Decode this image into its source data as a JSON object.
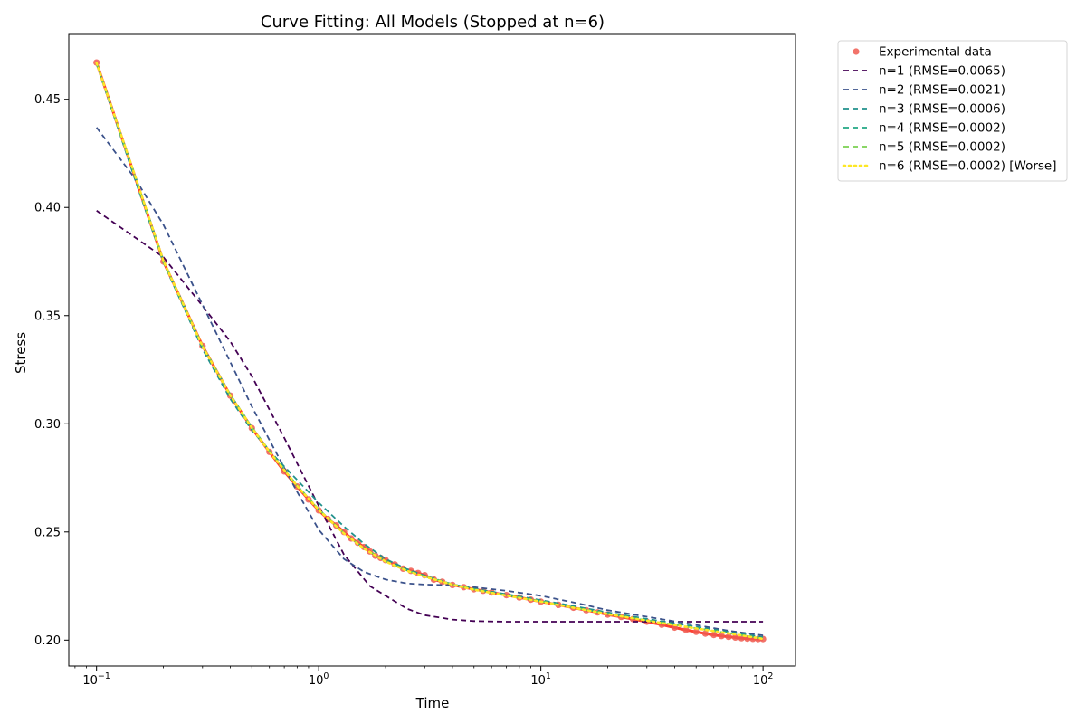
{
  "chart_data": {
    "type": "line",
    "title": "Curve Fitting: All Models (Stopped at n=6)",
    "xlabel": "Time",
    "ylabel": "Stress",
    "xscale": "log",
    "xlim": [
      0.075,
      140
    ],
    "ylim": [
      0.188,
      0.48
    ],
    "x_ticks": [
      {
        "value": 0.1,
        "base": "10",
        "exp": "−1"
      },
      {
        "value": 1,
        "base": "10",
        "exp": "0"
      },
      {
        "value": 10,
        "base": "10",
        "exp": "1"
      },
      {
        "value": 100,
        "base": "10",
        "exp": "2"
      }
    ],
    "y_ticks": [
      {
        "value": 0.2,
        "label": "0.20"
      },
      {
        "value": 0.25,
        "label": "0.25"
      },
      {
        "value": 0.3,
        "label": "0.30"
      },
      {
        "value": 0.35,
        "label": "0.35"
      },
      {
        "value": 0.4,
        "label": "0.40"
      },
      {
        "value": 0.45,
        "label": "0.45"
      }
    ],
    "grid": false,
    "legend_position": "outside-top-right",
    "experimental": {
      "name": "Experimental data",
      "color": "#f05a50",
      "x": [
        0.1,
        0.2,
        0.3,
        0.4,
        0.5,
        0.6,
        0.7,
        0.8,
        0.9,
        1.0,
        1.1,
        1.2,
        1.3,
        1.4,
        1.5,
        1.6,
        1.7,
        1.8,
        1.9,
        2.0,
        2.2,
        2.4,
        2.6,
        2.8,
        3.0,
        3.3,
        3.6,
        4.0,
        4.5,
        5.0,
        5.5,
        6.0,
        7.0,
        8.0,
        9.0,
        10,
        12,
        14,
        16,
        18,
        20,
        23,
        26,
        30,
        35,
        40,
        45,
        50,
        55,
        60,
        65,
        70,
        75,
        80,
        85,
        90,
        95,
        100
      ],
      "y": [
        0.467,
        0.375,
        0.336,
        0.313,
        0.298,
        0.287,
        0.278,
        0.271,
        0.265,
        0.26,
        0.256,
        0.253,
        0.25,
        0.247,
        0.245,
        0.243,
        0.241,
        0.239,
        0.238,
        0.237,
        0.235,
        0.233,
        0.232,
        0.231,
        0.23,
        0.228,
        0.227,
        0.2255,
        0.2245,
        0.2235,
        0.2228,
        0.222,
        0.2208,
        0.2197,
        0.2187,
        0.2178,
        0.2163,
        0.215,
        0.2138,
        0.2128,
        0.2118,
        0.2107,
        0.2097,
        0.2085,
        0.2071,
        0.2058,
        0.2047,
        0.2038,
        0.203,
        0.2024,
        0.2019,
        0.2015,
        0.2012,
        0.2009,
        0.2007,
        0.2006,
        0.2005,
        0.2005
      ]
    },
    "series": [
      {
        "name": "n=1 (RMSE=0.0065)",
        "color": "#440154",
        "dash": "6,4",
        "x": [
          0.1,
          0.2,
          0.3,
          0.4,
          0.5,
          0.7,
          1.0,
          1.3,
          1.7,
          2.0,
          2.5,
          3.0,
          4.0,
          5.0,
          7.0,
          10,
          20,
          50,
          100
        ],
        "y": [
          0.3985,
          0.377,
          0.3545,
          0.338,
          0.322,
          0.2935,
          0.262,
          0.2395,
          0.225,
          0.2205,
          0.2145,
          0.2115,
          0.2095,
          0.2088,
          0.2085,
          0.2085,
          0.2085,
          0.2085,
          0.2085
        ]
      },
      {
        "name": "n=2 (RMSE=0.0021)",
        "color": "#3b528b",
        "dash": "6,4",
        "x": [
          0.1,
          0.15,
          0.2,
          0.3,
          0.4,
          0.5,
          0.6,
          0.8,
          1.0,
          1.3,
          1.6,
          2.0,
          2.5,
          3.0,
          4.0,
          5.0,
          7.0,
          10,
          15,
          20,
          30,
          50,
          70,
          100
        ],
        "y": [
          0.437,
          0.413,
          0.392,
          0.355,
          0.3285,
          0.308,
          0.2925,
          0.2685,
          0.251,
          0.2375,
          0.2315,
          0.228,
          0.2262,
          0.2257,
          0.2253,
          0.2245,
          0.2228,
          0.2205,
          0.2168,
          0.2138,
          0.2108,
          0.207,
          0.2043,
          0.2022
        ]
      },
      {
        "name": "n=3 (RMSE=0.0006)",
        "color": "#21918c",
        "dash": "6,4",
        "x": [
          0.1,
          0.15,
          0.2,
          0.3,
          0.4,
          0.5,
          0.6,
          0.8,
          1.0,
          1.3,
          1.6,
          2.0,
          2.5,
          3.0,
          4.0,
          5.0,
          7.0,
          10,
          15,
          20,
          30,
          50,
          70,
          100
        ],
        "y": [
          0.4665,
          0.412,
          0.3745,
          0.3345,
          0.3115,
          0.297,
          0.2875,
          0.274,
          0.2635,
          0.2525,
          0.2445,
          0.2375,
          0.2328,
          0.2298,
          0.2258,
          0.2238,
          0.2212,
          0.2185,
          0.2152,
          0.2128,
          0.2098,
          0.2062,
          0.2038,
          0.2014
        ]
      },
      {
        "name": "n=4 (RMSE=0.0002)",
        "color": "#22a884",
        "dash": "6,4",
        "x": [
          0.1,
          0.15,
          0.2,
          0.3,
          0.4,
          0.5,
          0.6,
          0.8,
          1.0,
          1.3,
          1.6,
          2.0,
          2.5,
          3.0,
          4.0,
          5.0,
          7.0,
          10,
          15,
          20,
          30,
          50,
          70,
          100
        ],
        "y": [
          0.4665,
          0.414,
          0.3755,
          0.336,
          0.3135,
          0.2985,
          0.2875,
          0.2715,
          0.2605,
          0.2495,
          0.2425,
          0.2365,
          0.2322,
          0.2295,
          0.2258,
          0.2235,
          0.2208,
          0.218,
          0.2146,
          0.2122,
          0.2092,
          0.2056,
          0.2033,
          0.2008
        ]
      },
      {
        "name": "n=5 (RMSE=0.0002)",
        "color": "#7ad151",
        "dash": "6,4",
        "x": [
          0.1,
          0.15,
          0.2,
          0.3,
          0.4,
          0.5,
          0.6,
          0.8,
          1.0,
          1.3,
          1.6,
          2.0,
          2.5,
          3.0,
          4.0,
          5.0,
          7.0,
          10,
          15,
          20,
          30,
          50,
          70,
          100
        ],
        "y": [
          0.467,
          0.4135,
          0.375,
          0.336,
          0.3132,
          0.2982,
          0.2872,
          0.2713,
          0.2603,
          0.2494,
          0.2424,
          0.2364,
          0.2321,
          0.2294,
          0.2257,
          0.2234,
          0.2207,
          0.2179,
          0.2145,
          0.2121,
          0.2091,
          0.2055,
          0.2032,
          0.2007
        ]
      },
      {
        "name": "n=6 (RMSE=0.0002) [Worse]",
        "color": "#fde725",
        "dash": "2,4",
        "x": [
          0.1,
          0.15,
          0.2,
          0.3,
          0.4,
          0.5,
          0.6,
          0.8,
          1.0,
          1.3,
          1.6,
          2.0,
          2.5,
          3.0,
          4.0,
          5.0,
          7.0,
          10,
          15,
          20,
          30,
          50,
          70,
          100
        ],
        "y": [
          0.4668,
          0.4138,
          0.3752,
          0.3358,
          0.3131,
          0.2981,
          0.2871,
          0.2712,
          0.2602,
          0.2493,
          0.2423,
          0.2363,
          0.232,
          0.2293,
          0.2256,
          0.2233,
          0.2206,
          0.2178,
          0.2144,
          0.212,
          0.209,
          0.2054,
          0.2031,
          0.2006
        ]
      }
    ]
  }
}
